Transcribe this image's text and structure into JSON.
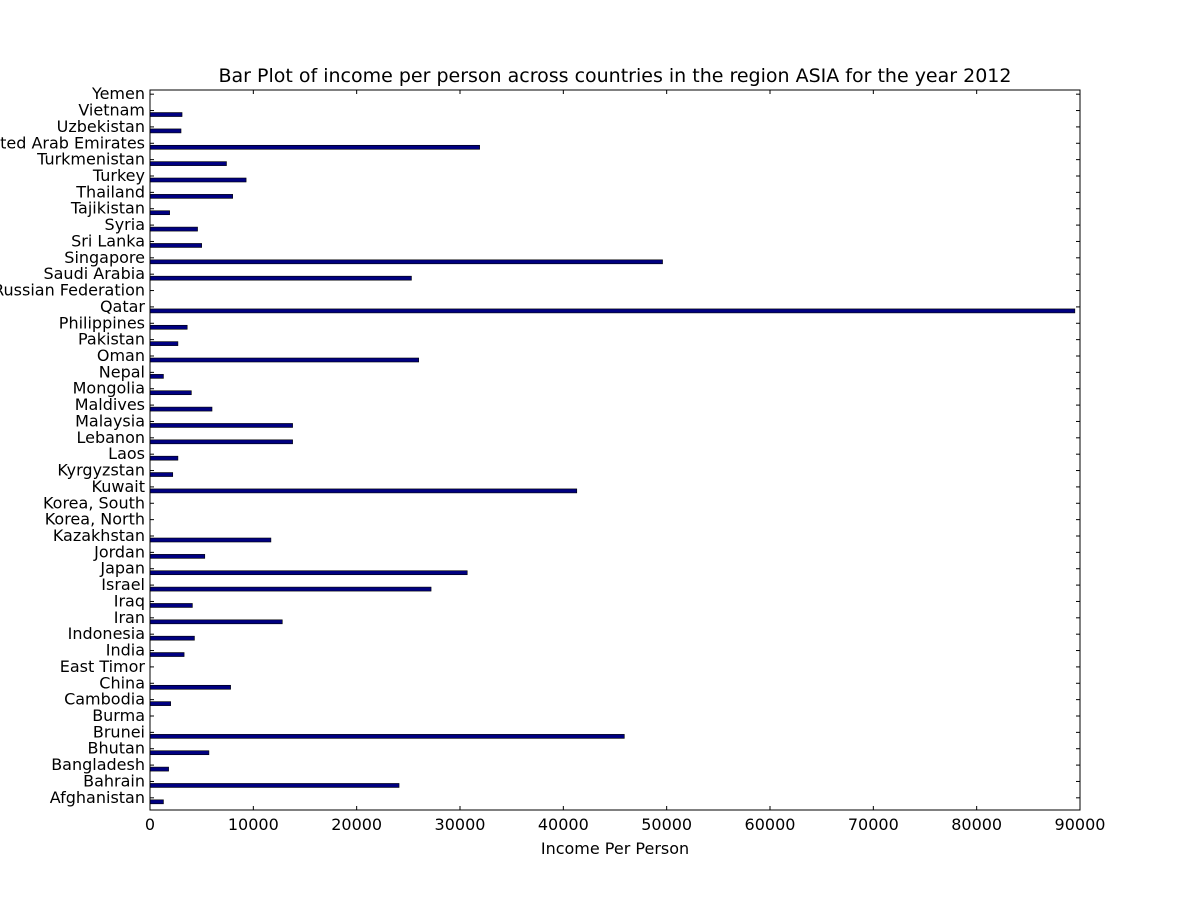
{
  "chart_data": {
    "type": "bar",
    "orientation": "horizontal",
    "title": "Bar Plot of income per person across countries in the region ASIA for the year 2012",
    "xlabel": "Income Per Person",
    "ylabel": "",
    "xlim": [
      0,
      90000
    ],
    "xticks": [
      "0",
      "10000",
      "20000",
      "30000",
      "40000",
      "50000",
      "60000",
      "70000",
      "80000",
      "90000"
    ],
    "grid": false,
    "legend": "none",
    "bar_color": "#000080",
    "categories": [
      "Afghanistan",
      "Bahrain",
      "Bangladesh",
      "Bhutan",
      "Brunei",
      "Burma",
      "Cambodia",
      "China",
      "East Timor",
      "India",
      "Indonesia",
      "Iran",
      "Iraq",
      "Israel",
      "Japan",
      "Jordan",
      "Kazakhstan",
      "Korea, North",
      "Korea, South",
      "Kuwait",
      "Kyrgyzstan",
      "Laos",
      "Lebanon",
      "Malaysia",
      "Maldives",
      "Mongolia",
      "Nepal",
      "Oman",
      "Pakistan",
      "Philippines",
      "Qatar",
      "Russian Federation",
      "Saudi Arabia",
      "Singapore",
      "Sri Lanka",
      "Syria",
      "Tajikistan",
      "Thailand",
      "Turkey",
      "Turkmenistan",
      "United Arab Emirates",
      "Uzbekistan",
      "Vietnam",
      "Yemen"
    ],
    "values": [
      1300,
      24100,
      1800,
      5700,
      45900,
      0,
      2000,
      7800,
      0,
      3300,
      4300,
      12800,
      4100,
      27200,
      30700,
      5300,
      11700,
      0,
      0,
      41300,
      2200,
      2700,
      13800,
      13800,
      6000,
      4000,
      1300,
      26000,
      2700,
      3600,
      89500,
      0,
      25300,
      49600,
      5000,
      4600,
      1900,
      8000,
      9300,
      7400,
      31900,
      3000,
      3100,
      0
    ]
  }
}
